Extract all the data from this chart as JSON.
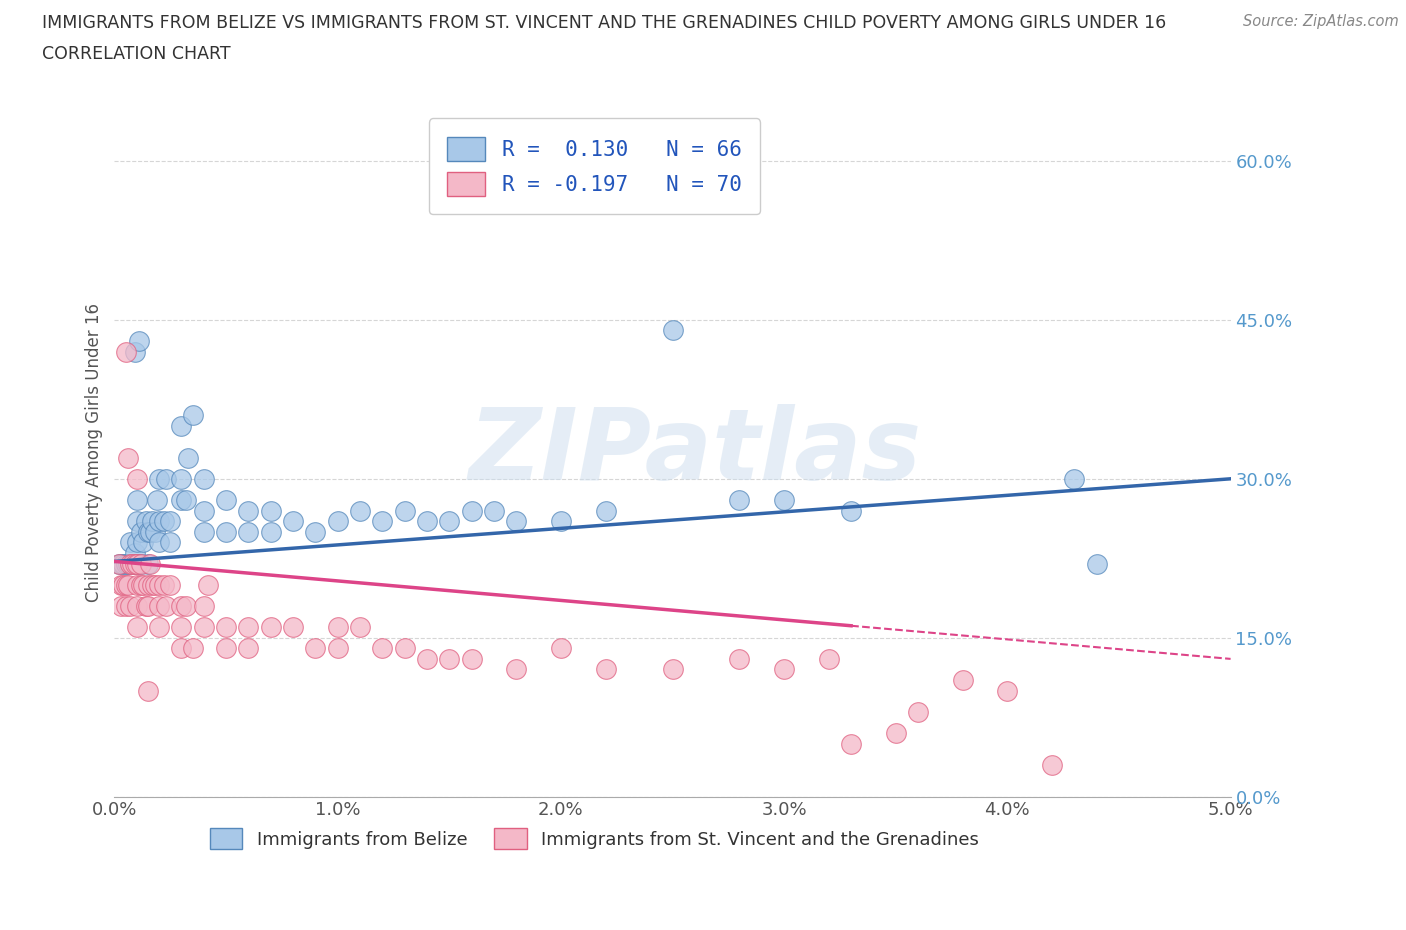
{
  "title_line1": "IMMIGRANTS FROM BELIZE VS IMMIGRANTS FROM ST. VINCENT AND THE GRENADINES CHILD POVERTY AMONG GIRLS UNDER 16",
  "title_line2": "CORRELATION CHART",
  "source_text": "Source: ZipAtlas.com",
  "ylabel": "Child Poverty Among Girls Under 16",
  "xlim": [
    0.0,
    0.05
  ],
  "ylim": [
    0.0,
    0.65
  ],
  "xticks": [
    0.0,
    0.01,
    0.02,
    0.03,
    0.04,
    0.05
  ],
  "xtick_labels": [
    "0.0%",
    "1.0%",
    "2.0%",
    "3.0%",
    "4.0%",
    "5.0%"
  ],
  "yticks": [
    0.0,
    0.15,
    0.3,
    0.45,
    0.6
  ],
  "ytick_labels": [
    "0.0%",
    "15.0%",
    "30.0%",
    "45.0%",
    "60.0%"
  ],
  "blue_R": 0.13,
  "blue_N": 66,
  "pink_R": -0.197,
  "pink_N": 70,
  "blue_color": "#a8c8e8",
  "pink_color": "#f4b8c8",
  "blue_edge_color": "#5588bb",
  "pink_edge_color": "#e06080",
  "blue_line_color": "#3366aa",
  "pink_line_color": "#dd4488",
  "watermark": "ZIPatlas",
  "legend_label_blue": "Immigrants from Belize",
  "legend_label_pink": "Immigrants from St. Vincent and the Grenadines",
  "blue_scatter_x": [
    0.0002,
    0.0003,
    0.0004,
    0.0005,
    0.0006,
    0.0007,
    0.0007,
    0.0008,
    0.0009,
    0.001,
    0.001,
    0.001,
    0.001,
    0.0012,
    0.0012,
    0.0013,
    0.0014,
    0.0015,
    0.0015,
    0.0016,
    0.0017,
    0.0018,
    0.0019,
    0.002,
    0.002,
    0.002,
    0.0022,
    0.0023,
    0.0025,
    0.0025,
    0.003,
    0.003,
    0.003,
    0.0032,
    0.0033,
    0.0035,
    0.004,
    0.004,
    0.004,
    0.005,
    0.005,
    0.006,
    0.006,
    0.007,
    0.007,
    0.008,
    0.009,
    0.01,
    0.011,
    0.012,
    0.013,
    0.014,
    0.015,
    0.016,
    0.017,
    0.018,
    0.02,
    0.022,
    0.025,
    0.028,
    0.03,
    0.033,
    0.043,
    0.044,
    0.0009,
    0.0011
  ],
  "blue_scatter_y": [
    0.22,
    0.22,
    0.22,
    0.22,
    0.22,
    0.22,
    0.24,
    0.22,
    0.23,
    0.22,
    0.24,
    0.26,
    0.28,
    0.22,
    0.25,
    0.24,
    0.26,
    0.22,
    0.25,
    0.25,
    0.26,
    0.25,
    0.28,
    0.24,
    0.26,
    0.3,
    0.26,
    0.3,
    0.24,
    0.26,
    0.28,
    0.3,
    0.35,
    0.28,
    0.32,
    0.36,
    0.25,
    0.27,
    0.3,
    0.25,
    0.28,
    0.25,
    0.27,
    0.25,
    0.27,
    0.26,
    0.25,
    0.26,
    0.27,
    0.26,
    0.27,
    0.26,
    0.26,
    0.27,
    0.27,
    0.26,
    0.26,
    0.27,
    0.44,
    0.28,
    0.28,
    0.27,
    0.3,
    0.22,
    0.42,
    0.43
  ],
  "pink_scatter_x": [
    0.0002,
    0.0003,
    0.0003,
    0.0004,
    0.0005,
    0.0005,
    0.0006,
    0.0007,
    0.0007,
    0.0008,
    0.0009,
    0.001,
    0.001,
    0.001,
    0.001,
    0.0012,
    0.0012,
    0.0013,
    0.0014,
    0.0015,
    0.0015,
    0.0016,
    0.0017,
    0.0018,
    0.002,
    0.002,
    0.002,
    0.0022,
    0.0023,
    0.0025,
    0.003,
    0.003,
    0.003,
    0.0032,
    0.0035,
    0.004,
    0.004,
    0.0042,
    0.005,
    0.005,
    0.006,
    0.006,
    0.007,
    0.008,
    0.009,
    0.01,
    0.01,
    0.011,
    0.012,
    0.013,
    0.014,
    0.015,
    0.016,
    0.018,
    0.02,
    0.022,
    0.025,
    0.028,
    0.03,
    0.032,
    0.033,
    0.035,
    0.036,
    0.038,
    0.04,
    0.042,
    0.0005,
    0.0006,
    0.001,
    0.0015
  ],
  "pink_scatter_y": [
    0.22,
    0.2,
    0.18,
    0.2,
    0.2,
    0.18,
    0.2,
    0.18,
    0.22,
    0.22,
    0.22,
    0.22,
    0.2,
    0.18,
    0.16,
    0.22,
    0.2,
    0.2,
    0.18,
    0.2,
    0.18,
    0.22,
    0.2,
    0.2,
    0.2,
    0.18,
    0.16,
    0.2,
    0.18,
    0.2,
    0.18,
    0.16,
    0.14,
    0.18,
    0.14,
    0.16,
    0.18,
    0.2,
    0.16,
    0.14,
    0.16,
    0.14,
    0.16,
    0.16,
    0.14,
    0.16,
    0.14,
    0.16,
    0.14,
    0.14,
    0.13,
    0.13,
    0.13,
    0.12,
    0.14,
    0.12,
    0.12,
    0.13,
    0.12,
    0.13,
    0.05,
    0.06,
    0.08,
    0.11,
    0.1,
    0.03,
    0.42,
    0.32,
    0.3,
    0.1
  ]
}
